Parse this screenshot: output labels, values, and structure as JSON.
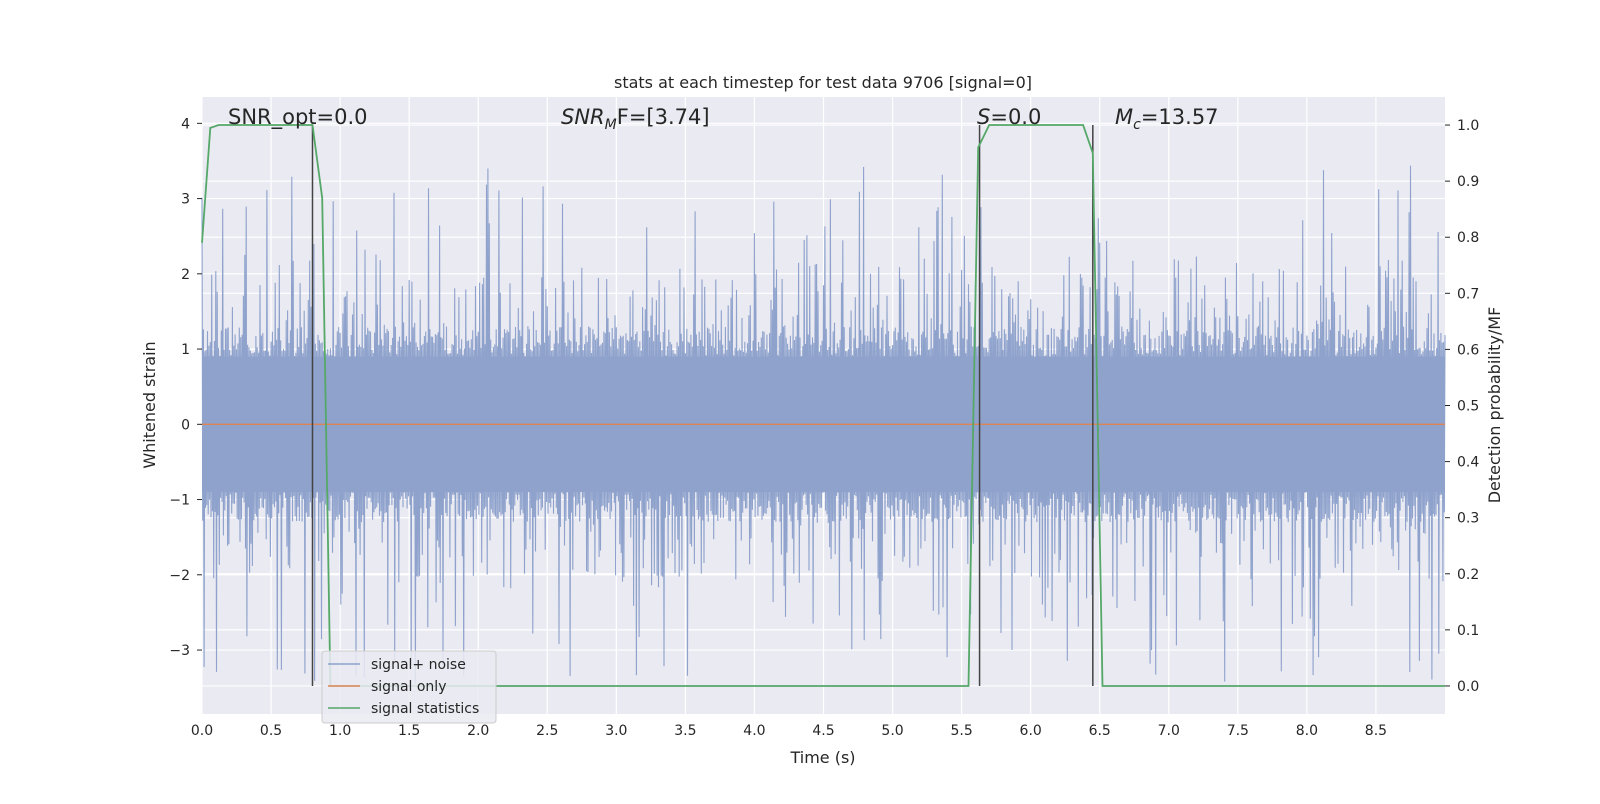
{
  "chart_data": {
    "type": "line",
    "title": "stats at each timestep for test data 9706 [signal=0]",
    "xlabel": "Time (s)",
    "ylabel": "Whitened strain",
    "y2label": "Detection probability/MF",
    "xlim": [
      0.0,
      9.0
    ],
    "ylim": [
      -3.85,
      4.35
    ],
    "y2lim": [
      -0.05,
      1.05
    ],
    "xticks": [
      0.0,
      0.5,
      1.0,
      1.5,
      2.0,
      2.5,
      3.0,
      3.5,
      4.0,
      4.5,
      5.0,
      5.5,
      6.0,
      6.5,
      7.0,
      7.5,
      8.0,
      8.5
    ],
    "xtick_labels": [
      "0.0",
      "0.5",
      "1.0",
      "1.5",
      "2.0",
      "2.5",
      "3.0",
      "3.5",
      "4.0",
      "4.5",
      "5.0",
      "5.5",
      "6.0",
      "6.5",
      "7.0",
      "7.5",
      "8.0",
      "8.5"
    ],
    "yticks": [
      4,
      3,
      2,
      1,
      0,
      -1,
      -2,
      -3
    ],
    "ytick_labels": [
      "4",
      "3",
      "2",
      "1",
      "0",
      "−1",
      "−2",
      "−3"
    ],
    "y2ticks": [
      1.0,
      0.9,
      0.8,
      0.7,
      0.6,
      0.5,
      0.4,
      0.3,
      0.2,
      0.1,
      0.0
    ],
    "y2tick_labels": [
      "1.0",
      "0.9",
      "0.8",
      "0.7",
      "0.6",
      "0.5",
      "0.4",
      "0.3",
      "0.2",
      "0.1",
      "0.0"
    ],
    "grid": true,
    "legend_position": "lower-left",
    "noise": {
      "series_name": "signal+ noise",
      "color": "#8ea2cc",
      "t_end": 9.0,
      "n_samples": 1800,
      "core_amplitude": 0.9,
      "spike_range": [
        -3.45,
        3.45
      ]
    },
    "signal_only": {
      "series_name": "signal only",
      "color": "#dd8452",
      "value": 0.0
    },
    "statistics": {
      "series_name": "signal statistics",
      "color": "#55a868",
      "x": [
        0.0,
        0.06,
        0.12,
        0.8,
        0.87,
        0.93,
        1.0,
        5.55,
        5.62,
        5.7,
        6.38,
        6.45,
        6.52,
        9.0
      ],
      "y": [
        0.79,
        0.995,
        1.0,
        1.0,
        0.87,
        0.0,
        0.0,
        0.0,
        0.96,
        1.0,
        1.0,
        0.95,
        0.0,
        0.0
      ]
    },
    "markers": {
      "x": [
        0.8,
        5.63,
        6.45
      ],
      "color": "#444444"
    },
    "annotations": [
      {
        "key": "snr_opt",
        "plain": "SNR_opt=0.0"
      },
      {
        "key": "snr_mf",
        "base": "SNR",
        "sub": "M",
        "rest": "F=[3.74]"
      },
      {
        "key": "s_val",
        "base": "S",
        "rest": "=0.0"
      },
      {
        "key": "mc",
        "base": "M",
        "sub": "c",
        "rest": "=13.57"
      }
    ],
    "legend": [
      "signal+ noise",
      "signal only",
      "signal statistics"
    ]
  },
  "colors": {
    "plot_bg": "#eaeaf2",
    "grid": "#ffffff",
    "noise": "#8ea2cc",
    "signal_only": "#dd8452",
    "statistics": "#55a868",
    "markers": "#444444"
  }
}
